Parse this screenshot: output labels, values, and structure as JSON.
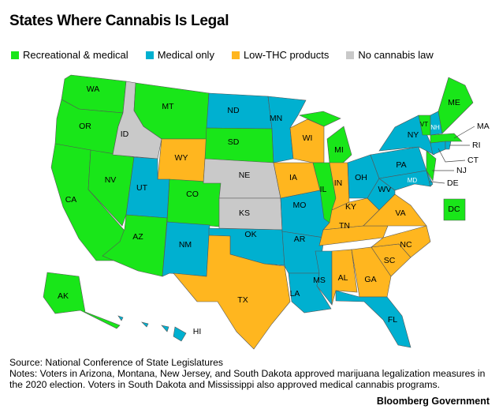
{
  "title": "States Where Cannabis Is Legal",
  "colors": {
    "recreational": "#19e619",
    "medical": "#00b0d0",
    "low_thc": "#ffb61f",
    "none": "#c9c9c9"
  },
  "legend": [
    {
      "key": "recreational",
      "label": "Recreational & medical"
    },
    {
      "key": "medical",
      "label": "Medical only"
    },
    {
      "key": "low_thc",
      "label": "Low-THC products"
    },
    {
      "key": "none",
      "label": "No cannabis law"
    }
  ],
  "states": [
    {
      "abbr": "WA",
      "status": "recreational"
    },
    {
      "abbr": "OR",
      "status": "recreational"
    },
    {
      "abbr": "CA",
      "status": "recreational"
    },
    {
      "abbr": "NV",
      "status": "recreational"
    },
    {
      "abbr": "ID",
      "status": "none"
    },
    {
      "abbr": "MT",
      "status": "recreational"
    },
    {
      "abbr": "WY",
      "status": "low_thc"
    },
    {
      "abbr": "UT",
      "status": "medical"
    },
    {
      "abbr": "AZ",
      "status": "recreational"
    },
    {
      "abbr": "CO",
      "status": "recreational"
    },
    {
      "abbr": "NM",
      "status": "medical"
    },
    {
      "abbr": "ND",
      "status": "medical"
    },
    {
      "abbr": "SD",
      "status": "recreational"
    },
    {
      "abbr": "NE",
      "status": "none"
    },
    {
      "abbr": "KS",
      "status": "none"
    },
    {
      "abbr": "OK",
      "status": "medical"
    },
    {
      "abbr": "TX",
      "status": "low_thc"
    },
    {
      "abbr": "MN",
      "status": "medical"
    },
    {
      "abbr": "IA",
      "status": "low_thc"
    },
    {
      "abbr": "MO",
      "status": "medical"
    },
    {
      "abbr": "AR",
      "status": "medical"
    },
    {
      "abbr": "LA",
      "status": "medical"
    },
    {
      "abbr": "WI",
      "status": "low_thc"
    },
    {
      "abbr": "IL",
      "status": "recreational"
    },
    {
      "abbr": "MI",
      "status": "recreational"
    },
    {
      "abbr": "IN",
      "status": "low_thc"
    },
    {
      "abbr": "OH",
      "status": "medical"
    },
    {
      "abbr": "KY",
      "status": "low_thc"
    },
    {
      "abbr": "TN",
      "status": "low_thc"
    },
    {
      "abbr": "MS",
      "status": "medical"
    },
    {
      "abbr": "AL",
      "status": "low_thc"
    },
    {
      "abbr": "GA",
      "status": "low_thc"
    },
    {
      "abbr": "FL",
      "status": "medical"
    },
    {
      "abbr": "SC",
      "status": "low_thc"
    },
    {
      "abbr": "NC",
      "status": "low_thc"
    },
    {
      "abbr": "VA",
      "status": "low_thc"
    },
    {
      "abbr": "WV",
      "status": "medical"
    },
    {
      "abbr": "PA",
      "status": "medical"
    },
    {
      "abbr": "NY",
      "status": "medical"
    },
    {
      "abbr": "MD",
      "status": "medical"
    },
    {
      "abbr": "DE",
      "status": "medical"
    },
    {
      "abbr": "NJ",
      "status": "recreational"
    },
    {
      "abbr": "CT",
      "status": "medical"
    },
    {
      "abbr": "RI",
      "status": "medical"
    },
    {
      "abbr": "MA",
      "status": "recreational"
    },
    {
      "abbr": "VT",
      "status": "recreational"
    },
    {
      "abbr": "NH",
      "status": "medical"
    },
    {
      "abbr": "ME",
      "status": "recreational"
    },
    {
      "abbr": "AK",
      "status": "recreational"
    },
    {
      "abbr": "HI",
      "status": "medical"
    },
    {
      "abbr": "DC",
      "status": "recreational"
    }
  ],
  "footer": {
    "source": "Source: National Conference of State Legislatures",
    "notes": "Notes: Voters in Arizona, Montana, New Jersey, and South Dakota approved marijuana legalization measures in the 2020 election. Voters in South Dakota and Mississippi also approved medical cannabis programs."
  },
  "brand": "Bloomberg Government"
}
